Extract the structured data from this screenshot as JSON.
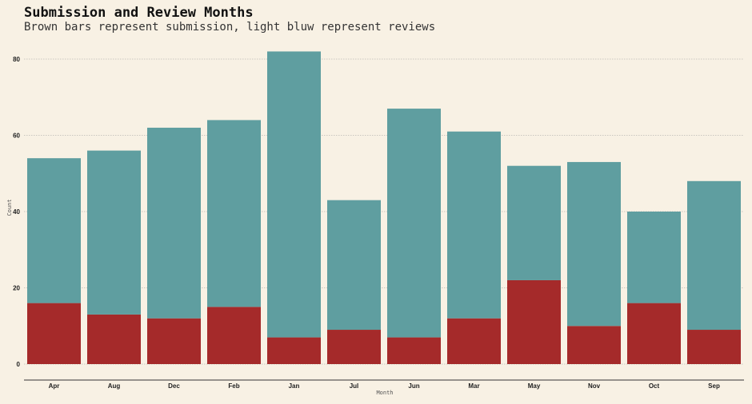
{
  "chart_data": {
    "type": "bar",
    "stacked": true,
    "title": "Submission and Review Months",
    "subtitle": "Brown bars represent submission, light bluw represent reviews",
    "xlabel": "Month",
    "ylabel": "Count",
    "categories": [
      "Apr",
      "Aug",
      "Dec",
      "Feb",
      "Jan",
      "Jul",
      "Jun",
      "Mar",
      "May",
      "Nov",
      "Oct",
      "Sep"
    ],
    "series": [
      {
        "values": [
          16,
          13,
          12,
          15,
          7,
          9,
          7,
          12,
          22,
          10,
          16,
          9
        ],
        "color": "#a52a2a"
      },
      {
        "values": [
          38,
          43,
          50,
          49,
          75,
          34,
          60,
          49,
          30,
          43,
          24,
          39
        ],
        "color": "#5f9ea0"
      }
    ],
    "totals": [
      54,
      56,
      62,
      64,
      82,
      43,
      67,
      61,
      52,
      53,
      40,
      48
    ],
    "ylim": [
      0,
      84
    ],
    "yticks": [
      0,
      20,
      40,
      60,
      80
    ],
    "grid": true,
    "background": "#f8f1e4"
  }
}
